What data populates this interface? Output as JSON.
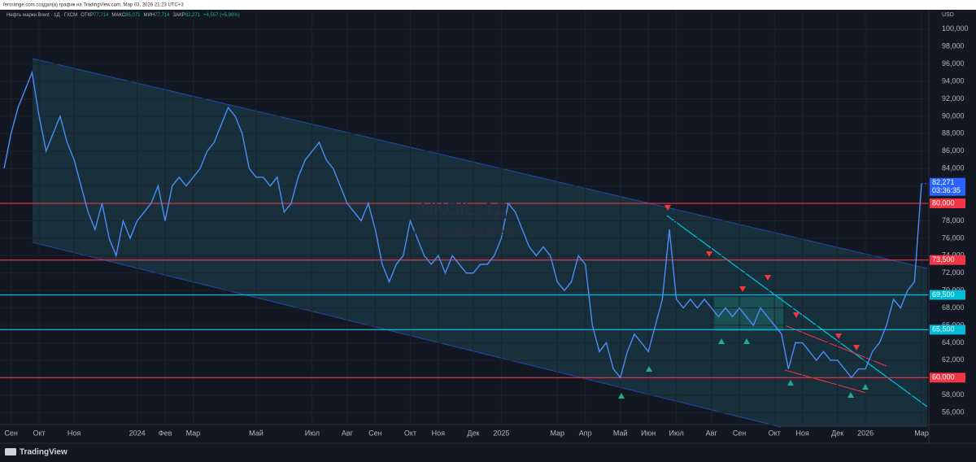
{
  "header": {
    "credit": "ferorange.com создал(а) график на TradingView.com, Мар 03, 2026 21:23 UTC+3"
  },
  "legend": {
    "symbol": "Нефть марки Brent · 1Д · ГХСМ",
    "items": [
      {
        "label": "ОТКР",
        "value": "77,714"
      },
      {
        "label": "МАКС",
        "value": "85,071"
      },
      {
        "label": "МИН",
        "value": "77,714"
      },
      {
        "label": "ЗАКР",
        "value": "82,271"
      }
    ],
    "change": "+4,557 (+5,86%)"
  },
  "watermark": {
    "ticker": "UKOIL, 1Д",
    "name": "Нефть марки Brent"
  },
  "footer": {
    "brand": "TradingView"
  },
  "chart_data": {
    "type": "line",
    "currency": "USD",
    "color": "#4c8df6",
    "categories": [
      null,
      "Сен",
      null,
      null,
      null,
      "Окт",
      null,
      null,
      null,
      null,
      "Ноя",
      null,
      null,
      null,
      null,
      null,
      null,
      null,
      null,
      "2024",
      null,
      null,
      null,
      "Фев",
      null,
      null,
      null,
      "Мар",
      null,
      null,
      null,
      null,
      null,
      null,
      null,
      null,
      "Май",
      null,
      null,
      null,
      null,
      null,
      null,
      null,
      "Июл",
      null,
      null,
      null,
      null,
      "Авг",
      null,
      null,
      null,
      "Сен",
      null,
      null,
      null,
      null,
      "Окт",
      null,
      null,
      null,
      "Ноя",
      null,
      null,
      null,
      null,
      "Дек",
      null,
      null,
      null,
      "2025",
      null,
      null,
      null,
      null,
      null,
      null,
      null,
      "Мар",
      null,
      null,
      null,
      "Апр",
      null,
      null,
      null,
      null,
      "Май",
      null,
      null,
      null,
      "Июн",
      null,
      null,
      null,
      "Июл",
      null,
      null,
      null,
      null,
      "Авг",
      null,
      null,
      null,
      "Сен",
      null,
      null,
      null,
      null,
      "Окт",
      null,
      null,
      null,
      "Ноя",
      null,
      null,
      null,
      null,
      "Дек",
      null,
      null,
      null,
      "2026",
      null,
      null,
      null,
      null,
      null,
      null,
      null,
      "Мар"
    ],
    "values": [
      84,
      88,
      91,
      93,
      95,
      90,
      86,
      88,
      90,
      87,
      85,
      82,
      79,
      77,
      80,
      76,
      74,
      78,
      76,
      78,
      79,
      80,
      82,
      78,
      82,
      83,
      82,
      83,
      84,
      86,
      87,
      89,
      91,
      90,
      88,
      84,
      83,
      83,
      82,
      83,
      79,
      80,
      83,
      85,
      86,
      87,
      85,
      84,
      82,
      80,
      79,
      78,
      80,
      77,
      73,
      71,
      73,
      74,
      78,
      76,
      74,
      73,
      74,
      72,
      74,
      73,
      72,
      72,
      73,
      73,
      74,
      76,
      80,
      79,
      77,
      75,
      74,
      75,
      74,
      71,
      70,
      71,
      74,
      73,
      66,
      63,
      64,
      61,
      60,
      63,
      65,
      64,
      63,
      66,
      69,
      77,
      69,
      68,
      69,
      68,
      69,
      68,
      67,
      68,
      67,
      68,
      67,
      66,
      68,
      67,
      66,
      65,
      61,
      64,
      64,
      63,
      62,
      63,
      62,
      62,
      61,
      60,
      61,
      61,
      63,
      64,
      66,
      69,
      68,
      70,
      71,
      82.271
    ],
    "price_label": "82,271",
    "countdown": "03:36:35",
    "ylim": [
      54.8,
      101.1
    ],
    "yticks": [
      {
        "value": 56,
        "label": "56,000"
      },
      {
        "value": 58,
        "label": "58,000"
      },
      {
        "value": 60,
        "label": "60,000"
      },
      {
        "value": 62,
        "label": "62,000"
      },
      {
        "value": 64,
        "label": "64,000"
      },
      {
        "value": 66,
        "label": "66,000"
      },
      {
        "value": 68,
        "label": "68,000"
      },
      {
        "value": 70,
        "label": "70,000"
      },
      {
        "value": 72,
        "label": "72,000"
      },
      {
        "value": 74,
        "label": "74,000"
      },
      {
        "value": 76,
        "label": "76,000"
      },
      {
        "value": 78,
        "label": "78,000"
      },
      {
        "value": 80,
        "label": "80,000"
      },
      {
        "value": 82,
        "label": "82,000"
      },
      {
        "value": 84,
        "label": "84,000"
      },
      {
        "value": 86,
        "label": "86,000"
      },
      {
        "value": 88,
        "label": "88,000"
      },
      {
        "value": 90,
        "label": "90,000"
      },
      {
        "value": 92,
        "label": "92,000"
      },
      {
        "value": 94,
        "label": "94,000"
      },
      {
        "value": 96,
        "label": "96,000"
      },
      {
        "value": 98,
        "label": "98,000"
      },
      {
        "value": 100,
        "label": "100,000"
      }
    ],
    "grid": true,
    "levels": [
      {
        "value": 80,
        "label": "80,000",
        "color": "#f23645"
      },
      {
        "value": 73.5,
        "label": "73,500",
        "color": "#f23645"
      },
      {
        "value": 69.5,
        "label": "69,500",
        "color": "#00bcd4"
      },
      {
        "value": 65.5,
        "label": "65,500",
        "color": "#00bcd4"
      },
      {
        "value": 60,
        "label": "60,000",
        "color": "#f23645"
      }
    ]
  }
}
